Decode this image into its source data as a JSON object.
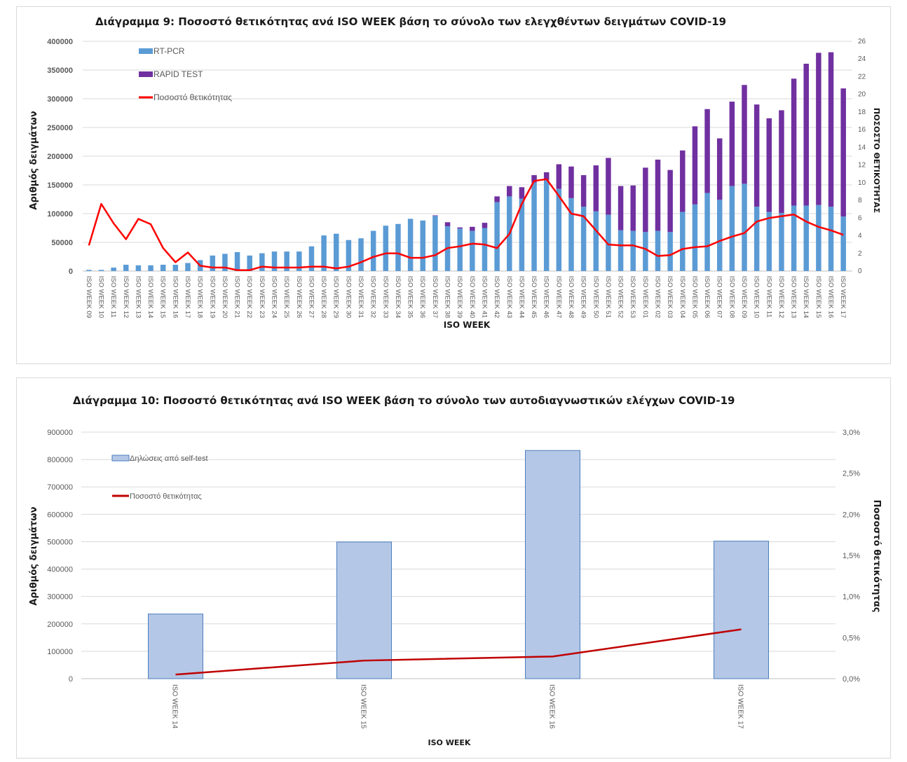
{
  "chart_data": [
    {
      "type": "bar",
      "stacked": true,
      "title": "Διάγραμμα 9: Ποσοστό  θετικότητας ανά ISO WEEK βάση το σύνολο των ελεγχθέντων δειγμάτων COVID-19",
      "xlabel": "ISO WEEK",
      "ylabel": "Αριθμός δειγμάτων",
      "y2label": "ΠΟΣΟΣΤΟ ΘΕΤΙΚΟΤΗΤΑΣ",
      "ylim": [
        0,
        400000
      ],
      "y2lim": [
        0,
        26
      ],
      "yticks": [
        "0",
        "50000",
        "100000",
        "150000",
        "200000",
        "250000",
        "300000",
        "350000",
        "400000"
      ],
      "y2ticks": [
        "0",
        "2",
        "4",
        "6",
        "8",
        "10",
        "12",
        "14",
        "16",
        "18",
        "20",
        "22",
        "24",
        "26"
      ],
      "grid": true,
      "legend_position": "top-left",
      "categories": [
        "ISO WEEK 09",
        "ISO WEEK 10",
        "ISO WEEK 11",
        "ISO WEEK 12",
        "ISO WEEK 13",
        "ISO WEEK 14",
        "ISO WEEK 15",
        "ISO WEEK 16",
        "ISO WEEK 17",
        "ISO WEEK 18",
        "ISO WEEK 19",
        "ISO WEEK 20",
        "ISO WEEK 21",
        "ISO WEEK 22",
        "ISO WEEK 23",
        "ISO WEEK 24",
        "ISO WEEK 25",
        "ISO WEEK 26",
        "ISO WEEK 27",
        "ISO WEEK 28",
        "ISO WEEK 29",
        "ISO WEEK 30",
        "ISO WEEK 31",
        "ISO WEEK 32",
        "ISO WEEK 33",
        "ISO WEEK 34",
        "ISO WEEK 35",
        "ISO WEEK 36",
        "ISO WEEK 37",
        "ISO WEEK 38",
        "ISO WEEK 39",
        "ISO WEEK 40",
        "ISO WEEK 41",
        "ISO WEEK 42",
        "ISO WEEK 43",
        "ISO WEEK 44",
        "ISO WEEK 45",
        "ISO WEEK 46",
        "ISO WEEK 47",
        "ISO WEEK 48",
        "ISO WEEK 49",
        "ISO WEEK 50",
        "ISO WEEK 51",
        "ISO WEEK 52",
        "ISO WEEK 53",
        "ISO WEEK 01",
        "ISO WEEK 02",
        "ISO WEEK 03",
        "ISO WEEK 04",
        "ISO WEEK 05",
        "ISO WEEK 06",
        "ISO WEEK 07",
        "ISO WEEK 08",
        "ISO WEEK 09",
        "ISO WEEK 10",
        "ISO WEEK 11",
        "ISO WEEK 12",
        "ISO WEEK 13",
        "ISO WEEK 14",
        "ISO WEEK 15",
        "ISO WEEK 16",
        "ISO WEEK 17"
      ],
      "series": [
        {
          "name": "RT-PCR",
          "kind": "bar",
          "color": "#5b9bd5",
          "values": [
            2000,
            2000,
            6000,
            11000,
            10000,
            10000,
            11000,
            11000,
            14000,
            19000,
            27000,
            30000,
            33000,
            27000,
            31000,
            34000,
            34000,
            34000,
            43000,
            62000,
            65000,
            54000,
            57000,
            70000,
            79000,
            82000,
            91000,
            88000,
            96000,
            78000,
            74000,
            70000,
            75000,
            120000,
            130000,
            126000,
            154000,
            158000,
            143000,
            127000,
            112000,
            104000,
            98000,
            71000,
            70000,
            68000,
            70000,
            68000,
            103000,
            116000,
            136000,
            124000,
            148000,
            152000,
            112000,
            103000,
            101000,
            114000,
            114000,
            115000,
            112000,
            95000
          ]
        },
        {
          "name": "RAPID TEST",
          "kind": "bar",
          "color": "#7030a0",
          "values": [
            0,
            0,
            0,
            0,
            0,
            0,
            0,
            0,
            0,
            0,
            0,
            0,
            0,
            0,
            0,
            0,
            0,
            0,
            0,
            0,
            0,
            0,
            0,
            0,
            0,
            0,
            0,
            0,
            1000,
            7000,
            2000,
            7000,
            9000,
            10000,
            18000,
            20000,
            13000,
            14000,
            43000,
            55000,
            55000,
            80000,
            99000,
            77000,
            79000,
            112000,
            124000,
            108000,
            107000,
            136000,
            146000,
            107000,
            147000,
            172000,
            178000,
            163000,
            179000,
            221000,
            247000,
            265000,
            269000,
            223000
          ]
        },
        {
          "name": "Ποσοστό θετικότητας",
          "kind": "line",
          "axis": "right",
          "color": "#ff0000",
          "values": [
            2.9,
            7.6,
            5.4,
            3.6,
            5.9,
            5.3,
            2.6,
            1.0,
            2.1,
            0.6,
            0.4,
            0.4,
            0.1,
            0.1,
            0.5,
            0.4,
            0.4,
            0.4,
            0.5,
            0.5,
            0.3,
            0.5,
            1.0,
            1.6,
            2.0,
            2.0,
            1.5,
            1.5,
            1.8,
            2.6,
            2.8,
            3.1,
            3.0,
            2.6,
            4.2,
            7.6,
            10.2,
            10.4,
            8.5,
            6.5,
            6.2,
            4.6,
            3.0,
            2.9,
            2.9,
            2.5,
            1.7,
            1.8,
            2.5,
            2.7,
            2.8,
            3.4,
            3.9,
            4.3,
            5.6,
            6.0,
            6.2,
            6.4,
            5.6,
            5.0,
            4.6,
            4.1
          ]
        }
      ]
    },
    {
      "type": "bar",
      "title": "Διάγραμμα 10: Ποσοστό  θετικότητας ανά ISO WEEK  βάση το σύνολο των αυτοδιαγνωστικών  ελέγχων COVID-19",
      "xlabel": "ISO WEEK",
      "ylabel": "Αριθμός δειγμάτων",
      "y2label": "Ποσοστό θετικότητας",
      "ylim": [
        0,
        900000
      ],
      "y2lim": [
        0,
        3.0
      ],
      "yticks": [
        "0",
        "100000",
        "200000",
        "300000",
        "400000",
        "500000",
        "600000",
        "700000",
        "800000",
        "900000"
      ],
      "y2ticks": [
        "0,0%",
        "0,5%",
        "1,0%",
        "1,5%",
        "2,0%",
        "2,5%",
        "3,0%"
      ],
      "grid": true,
      "legend_position": "top-left",
      "categories": [
        "ISO WEEK  14",
        "ISO WEEK  15",
        "ISO WEEK  16",
        "ISO WEEK  17"
      ],
      "series": [
        {
          "name": "Δηλώσεις από self-test",
          "kind": "bar",
          "color": "#b4c7e7",
          "values": [
            236000,
            499000,
            833000,
            502000
          ]
        },
        {
          "name": "Ποσοστό θετικότητας",
          "kind": "line",
          "axis": "right",
          "unit": "%",
          "color": "#c00000",
          "values": [
            0.05,
            0.22,
            0.27,
            0.6
          ]
        }
      ]
    }
  ]
}
